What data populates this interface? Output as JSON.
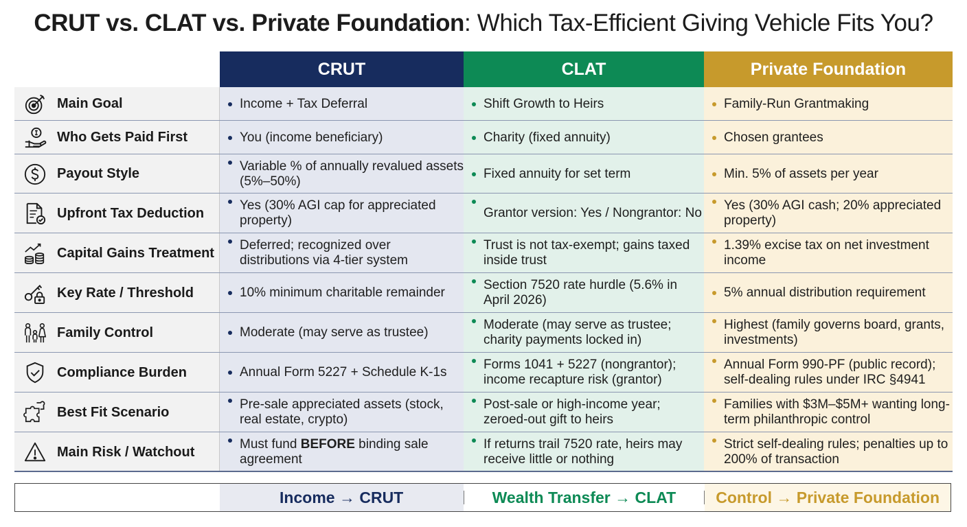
{
  "title": {
    "bold": "CRUT vs. CLAT vs. Private Foundation",
    "rest": ": Which Tax-Efficient Giving Vehicle Fits You?"
  },
  "columns": {
    "crut": "CRUT",
    "clat": "CLAT",
    "pf": "Private Foundation"
  },
  "colors": {
    "crut": "#172c5e",
    "clat": "#0d8a55",
    "pf": "#c79a2c"
  },
  "rows": [
    {
      "icon": "target-icon",
      "label": "Main Goal",
      "crut": "Income + Tax Deferral",
      "clat": "Shift Growth to Heirs",
      "pf": "Family-Run Grantmaking"
    },
    {
      "icon": "hand-coin-icon",
      "label": "Who Gets Paid First",
      "crut": "You (income beneficiary)",
      "clat": "Charity (fixed annuity)",
      "pf": "Chosen grantees"
    },
    {
      "icon": "dollar-circle-icon",
      "label": "Payout Style",
      "crut": "Variable % of annually revalued assets (5%–50%)",
      "clat": "Fixed annuity for set term",
      "pf": "Min. 5% of assets per year"
    },
    {
      "icon": "document-check-icon",
      "label": "Upfront Tax Deduction",
      "crut": "Yes (30% AGI cap for appreciated property)",
      "clat": "Grantor version: Yes / Nongrantor: No",
      "pf": "Yes (30% AGI cash; 20% appreciated property)"
    },
    {
      "icon": "growth-coins-icon",
      "label": "Capital Gains Treatment",
      "crut": "Deferred; recognized over distributions via 4-tier system",
      "clat": "Trust is not tax-exempt; gains taxed inside trust",
      "pf": "1.39% excise tax on net investment income"
    },
    {
      "icon": "key-lock-icon",
      "label": "Key Rate / Threshold",
      "crut": "10% minimum charitable remainder",
      "clat": "Section 7520 rate hurdle (5.6% in April 2026)",
      "pf": "5% annual distribution requirement"
    },
    {
      "icon": "family-icon",
      "label": "Family Control",
      "crut": "Moderate (may serve as trustee)",
      "clat": "Moderate (may serve as trustee; charity payments locked in)",
      "pf": "Highest (family governs board, grants, investments)"
    },
    {
      "icon": "shield-check-icon",
      "label": "Compliance Burden",
      "crut": "Annual Form 5227 + Schedule K-1s",
      "clat": "Forms 1041 + 5227 (nongrantor); income recapture risk (grantor)",
      "pf": "Annual Form 990-PF (public record); self-dealing rules under IRC §4941"
    },
    {
      "icon": "puzzle-icon",
      "label": "Best Fit Scenario",
      "crut": "Pre-sale appreciated assets (stock, real estate, crypto)",
      "clat": "Post-sale or high-income year; zeroed-out gift to heirs",
      "pf": "Families with $3M–$5M+ wanting long-term philanthropic control"
    },
    {
      "icon": "warning-triangle-icon",
      "label": "Main Risk / Watchout",
      "crut_pre": "Must fund ",
      "crut_bold": "BEFORE",
      "crut_post": " binding sale agreement",
      "clat": "If returns trail 7520 rate, heirs may receive little or nothing",
      "pf": "Strict self-dealing rules; penalties up to 200% of transaction"
    }
  ],
  "footer": {
    "crut": "Income → CRUT",
    "clat": "Wealth Transfer → CLAT",
    "pf": "Control → Private Foundation"
  }
}
